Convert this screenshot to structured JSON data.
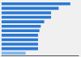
{
  "chart_data": {
    "type": "bar",
    "orientation": "horizontal",
    "categories": [
      null,
      null,
      null,
      null,
      null,
      null,
      null,
      null,
      null,
      null,
      null,
      null
    ],
    "values": [
      1.0,
      0.83,
      0.72,
      0.72,
      0.62,
      0.57,
      0.55,
      0.53,
      0.53,
      0.53,
      0.53,
      0.35
    ],
    "colors": [
      "#2878D6",
      "#2878D6",
      "#2878D6",
      "#2878D6",
      "#2878D6",
      "#2878D6",
      "#2878D6",
      "#2878D6",
      "#2878D6",
      "#2878D6",
      "#2878D6",
      "#7FB8EE"
    ],
    "xlim": [
      0,
      1.12
    ],
    "tick_labels": false,
    "grid": false
  }
}
